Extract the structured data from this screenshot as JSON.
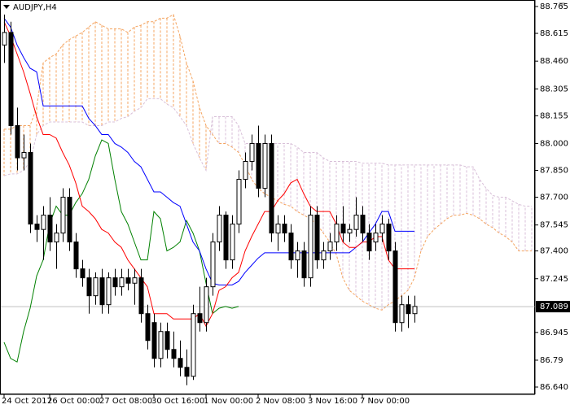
{
  "chart_data": {
    "type": "candlestick",
    "title": "AUDJPY,H4",
    "categories": [
      "24 Oct 2017",
      null,
      null,
      null,
      null,
      null,
      null,
      "26 Oct 00:00",
      null,
      null,
      null,
      null,
      null,
      null,
      null,
      "27 Oct 08:00",
      null,
      null,
      null,
      null,
      null,
      null,
      null,
      "30 Oct 16:00",
      null,
      null,
      null,
      null,
      null,
      null,
      null,
      "1 Nov 00:00",
      null,
      null,
      null,
      null,
      null,
      null,
      null,
      "2 Nov 08:00",
      null,
      null,
      null,
      null,
      null,
      null,
      null,
      "3 Nov 16:00",
      null,
      null,
      null,
      null,
      null,
      null,
      null,
      "7 Nov 00:00",
      null,
      null,
      null,
      null,
      null,
      null,
      null,
      null
    ],
    "open": [
      88.55,
      88.62,
      88.1,
      87.92,
      87.95,
      87.55,
      87.52,
      87.6,
      87.45,
      87.5,
      87.7,
      87.45,
      87.3,
      87.25,
      87.15,
      87.25,
      87.1,
      87.25,
      87.2,
      87.25,
      87.22,
      87.25,
      87.05,
      87.0,
      86.8,
      86.95,
      86.85,
      86.8,
      86.75,
      86.7,
      87.05,
      87.0,
      87.2,
      87.45,
      87.6,
      87.35,
      87.55,
      87.8,
      87.9,
      88.0,
      87.75,
      88.0,
      87.5,
      87.55,
      87.5,
      87.35,
      87.4,
      87.25,
      87.6,
      87.35,
      87.4,
      87.45,
      87.55,
      87.5,
      87.52,
      87.6,
      87.5,
      87.45,
      87.5,
      87.55,
      87.4,
      87.0,
      87.1,
      87.05
    ],
    "high": [
      88.72,
      88.68,
      88.2,
      88.05,
      88.0,
      87.6,
      87.65,
      87.7,
      87.55,
      87.75,
      87.75,
      87.5,
      87.35,
      87.3,
      87.28,
      87.3,
      87.28,
      87.3,
      87.3,
      87.3,
      87.3,
      87.3,
      87.1,
      87.05,
      87.0,
      87.0,
      86.95,
      86.9,
      86.85,
      87.1,
      87.2,
      87.25,
      87.5,
      87.65,
      87.62,
      87.6,
      87.85,
      87.95,
      88.05,
      88.1,
      88.05,
      88.05,
      87.6,
      87.6,
      87.55,
      87.45,
      87.45,
      87.65,
      87.65,
      87.45,
      87.5,
      87.6,
      87.65,
      87.55,
      87.7,
      87.65,
      87.55,
      87.55,
      87.6,
      87.58,
      87.45,
      87.15,
      87.15,
      87.15
    ],
    "low": [
      88.45,
      88.05,
      87.85,
      87.85,
      87.5,
      87.45,
      87.35,
      87.4,
      87.3,
      87.45,
      87.4,
      87.25,
      87.2,
      87.05,
      87.1,
      87.05,
      87.05,
      87.15,
      87.15,
      87.18,
      87.1,
      87.0,
      86.85,
      86.75,
      86.75,
      86.8,
      86.75,
      86.7,
      86.65,
      86.68,
      86.95,
      86.95,
      87.15,
      87.4,
      87.3,
      87.3,
      87.5,
      87.75,
      87.85,
      87.7,
      87.7,
      87.45,
      87.4,
      87.45,
      87.3,
      87.25,
      87.2,
      87.2,
      87.3,
      87.3,
      87.35,
      87.4,
      87.45,
      87.45,
      87.48,
      87.45,
      87.35,
      87.4,
      87.45,
      87.35,
      86.95,
      86.95,
      86.97,
      87.0
    ],
    "close": [
      88.62,
      88.1,
      87.92,
      87.95,
      87.55,
      87.52,
      87.6,
      87.45,
      87.5,
      87.7,
      87.45,
      87.3,
      87.25,
      87.15,
      87.25,
      87.1,
      87.25,
      87.2,
      87.25,
      87.22,
      87.25,
      87.05,
      86.9,
      86.8,
      86.95,
      86.85,
      86.8,
      86.75,
      86.7,
      87.05,
      87.0,
      87.2,
      87.45,
      87.6,
      87.35,
      87.55,
      87.8,
      87.9,
      88.0,
      87.75,
      88.0,
      87.5,
      87.55,
      87.5,
      87.35,
      87.4,
      87.25,
      87.6,
      87.35,
      87.4,
      87.45,
      87.55,
      87.5,
      87.52,
      87.6,
      87.5,
      87.4,
      87.5,
      87.55,
      87.4,
      87.0,
      87.1,
      87.05,
      87.09
    ],
    "tenkan": {
      "color": "#ff0000",
      "values": [
        88.68,
        88.6,
        88.5,
        88.4,
        88.28,
        88.15,
        88.05,
        88.05,
        88.03,
        87.95,
        87.88,
        87.78,
        87.65,
        87.62,
        87.58,
        87.52,
        87.5,
        87.45,
        87.42,
        87.35,
        87.3,
        87.25,
        87.2,
        87.05,
        87.05,
        87.05,
        87.02,
        87.02,
        87.02,
        87.02,
        87.05,
        86.98,
        87.05,
        87.18,
        87.2,
        87.25,
        87.28,
        87.4,
        87.48,
        87.55,
        87.62,
        87.62,
        87.68,
        87.72,
        87.78,
        87.8,
        87.72,
        87.65,
        87.62,
        87.62,
        87.62,
        87.55,
        87.45,
        87.42,
        87.42,
        87.45,
        87.45,
        87.48,
        87.48,
        87.35,
        87.3,
        87.3,
        87.3,
        87.3
      ]
    },
    "kijun": {
      "color": "#0000ff",
      "values": [
        88.7,
        88.65,
        88.55,
        88.48,
        88.42,
        88.4,
        88.21,
        88.21,
        88.21,
        88.21,
        88.21,
        88.21,
        88.21,
        88.14,
        88.1,
        88.05,
        88.05,
        88.0,
        87.98,
        87.95,
        87.9,
        87.87,
        87.8,
        87.73,
        87.73,
        87.7,
        87.67,
        87.65,
        87.55,
        87.45,
        87.4,
        87.3,
        87.22,
        87.21,
        87.21,
        87.21,
        87.23,
        87.28,
        87.32,
        87.36,
        87.39,
        87.39,
        87.39,
        87.39,
        87.39,
        87.39,
        87.39,
        87.39,
        87.39,
        87.39,
        87.39,
        87.39,
        87.39,
        87.39,
        87.42,
        87.45,
        87.5,
        87.55,
        87.62,
        87.62,
        87.51,
        87.51,
        87.51,
        87.51
      ]
    },
    "chikou": {
      "color": "#008000",
      "values": [
        86.89,
        86.8,
        86.78,
        86.95,
        87.08,
        87.26,
        87.35,
        87.55,
        87.65,
        87.6,
        87.6,
        87.67,
        87.72,
        87.8,
        87.93,
        88.02,
        88.0,
        87.8,
        87.62,
        87.55,
        87.45,
        87.35,
        87.35,
        87.62,
        87.58,
        87.4,
        87.42,
        87.45,
        87.57,
        87.5,
        87.4,
        87.22,
        87.05,
        87.08,
        87.09,
        87.08,
        87.09,
        null,
        null,
        null,
        null,
        null,
        null,
        null,
        null,
        null,
        null,
        null,
        null,
        null,
        null,
        null,
        null,
        null,
        null,
        null,
        null,
        null,
        null,
        null,
        null,
        null,
        null,
        null
      ]
    },
    "span_a": {
      "color": "#f4a460",
      "values": [
        88.08,
        88.08,
        88.1,
        88.1,
        88.1,
        88.2,
        88.45,
        88.48,
        88.5,
        88.55,
        88.58,
        88.6,
        88.62,
        88.65,
        88.68,
        88.66,
        88.64,
        88.64,
        88.64,
        88.62,
        88.65,
        88.66,
        88.68,
        88.68,
        88.7,
        88.7,
        88.72,
        88.6,
        88.45,
        88.35,
        88.2,
        88.1,
        88.05,
        88.0,
        88.0,
        87.98,
        87.95,
        87.88,
        87.8,
        87.75,
        87.72,
        87.7,
        87.68,
        87.66,
        87.65,
        87.62,
        87.6,
        87.58,
        87.55,
        87.5,
        87.45,
        87.38,
        87.25,
        87.18,
        87.15,
        87.12,
        87.1,
        87.08,
        87.07,
        87.1,
        87.12,
        87.15,
        87.18,
        87.25,
        87.4,
        87.48,
        87.52,
        87.55,
        87.58,
        87.6,
        87.6,
        87.61,
        87.6,
        87.58,
        87.55,
        87.53,
        87.5,
        87.48,
        87.45,
        87.4,
        87.4,
        87.4
      ]
    },
    "span_b": {
      "color": "#d8bfd8",
      "values": [
        87.82,
        87.83,
        87.83,
        87.85,
        87.9,
        88.05,
        88.1,
        88.12,
        88.12,
        88.12,
        88.12,
        88.12,
        88.12,
        88.1,
        88.1,
        88.1,
        88.12,
        88.12,
        88.14,
        88.15,
        88.18,
        88.2,
        88.25,
        88.25,
        88.25,
        88.22,
        88.2,
        88.15,
        88.1,
        88.0,
        87.92,
        87.85,
        88.15,
        88.15,
        88.15,
        88.15,
        88.1,
        88.0,
        88.0,
        88.0,
        88.0,
        88.0,
        88.0,
        88.0,
        88.0,
        87.98,
        87.95,
        87.95,
        87.95,
        87.92,
        87.9,
        87.9,
        87.9,
        87.9,
        87.9,
        87.89,
        87.89,
        87.89,
        87.89,
        87.88,
        87.88,
        87.88,
        87.88,
        87.88,
        87.88,
        87.88,
        87.88,
        87.88,
        87.88,
        87.88,
        87.88,
        87.87,
        87.87,
        87.8,
        87.75,
        87.71,
        87.7,
        87.7,
        87.68,
        87.66,
        87.65,
        87.65
      ]
    },
    "ylim": [
      86.64,
      88.765
    ],
    "yticks": [
      88.765,
      88.615,
      {
        "value": 88.46,
        "label": "88.460"
      },
      88.305,
      88.155,
      {
        "value": 88.0,
        "label": "88.000"
      },
      {
        "value": 87.85,
        "label": "87.850"
      },
      {
        "value": 87.7,
        "label": "87.700"
      },
      87.545,
      {
        "value": 87.4,
        "label": "87.400"
      },
      87.245,
      86.945,
      86.79,
      {
        "value": 86.64,
        "label": "86.640"
      }
    ],
    "current_price": 87.089
  }
}
